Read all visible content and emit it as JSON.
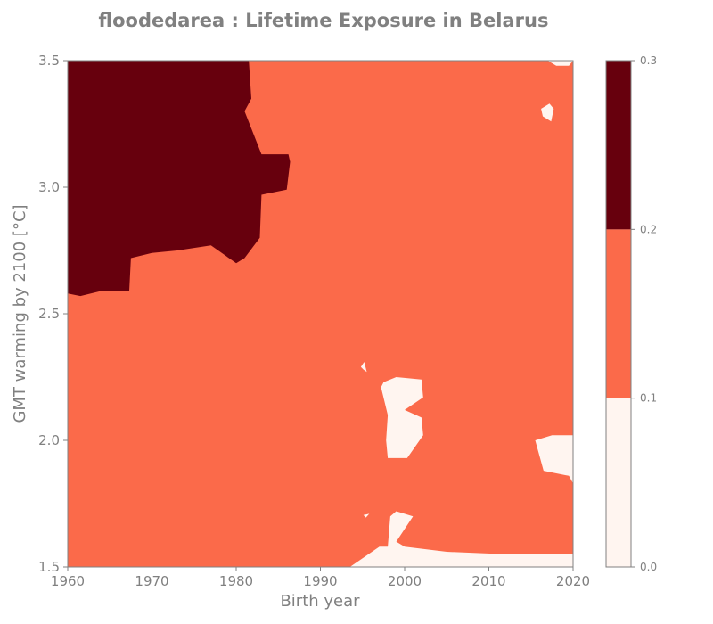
{
  "chart_data": {
    "type": "heatmap",
    "title": "floodedarea : Lifetime Exposure in Belarus",
    "xlabel": "Birth year",
    "ylabel": "GMT warming by 2100 [°C]",
    "xlim": [
      1960,
      2020
    ],
    "ylim": [
      1.5,
      3.5
    ],
    "x_ticks": [
      "1960",
      "1970",
      "1980",
      "1990",
      "2000",
      "2010",
      "2020"
    ],
    "y_ticks": [
      "1.5",
      "2.0",
      "2.5",
      "3.0",
      "3.5"
    ],
    "background_level_color": "#fb6a4a",
    "levels": [
      {
        "range": [
          0.0,
          0.1
        ],
        "color": "#fff5f0"
      },
      {
        "range": [
          0.1,
          0.2
        ],
        "color": "#fb6a4a"
      },
      {
        "range": [
          0.2,
          0.3
        ],
        "color": "#67000d"
      }
    ],
    "regions": [
      {
        "level": "0.2-0.3",
        "polygon": [
          [
            1960,
            3.5
          ],
          [
            1981.5,
            3.5
          ],
          [
            1981.8,
            3.35
          ],
          [
            1981,
            3.3
          ],
          [
            1983,
            3.13
          ],
          [
            1986.2,
            3.13
          ],
          [
            1986.4,
            3.1
          ],
          [
            1986,
            2.99
          ],
          [
            1983,
            2.97
          ],
          [
            1982.8,
            2.8
          ],
          [
            1981,
            2.72
          ],
          [
            1980,
            2.7
          ],
          [
            1977,
            2.77
          ],
          [
            1973,
            2.75
          ],
          [
            1970,
            2.74
          ],
          [
            1967.5,
            2.72
          ],
          [
            1967.3,
            2.59
          ],
          [
            1964,
            2.59
          ],
          [
            1961.5,
            2.57
          ],
          [
            1960,
            2.58
          ]
        ]
      },
      {
        "level": "0.0-0.1",
        "polygon": [
          [
            1997.2,
            2.21
          ],
          [
            1997.5,
            2.23
          ],
          [
            1999,
            2.25
          ],
          [
            2002,
            2.24
          ],
          [
            2002.2,
            2.17
          ],
          [
            2000,
            2.12
          ],
          [
            2002,
            2.09
          ],
          [
            2002.2,
            2.02
          ],
          [
            2000.3,
            1.93
          ],
          [
            1998,
            1.93
          ],
          [
            1997.8,
            2.0
          ],
          [
            1998,
            2.1
          ]
        ]
      },
      {
        "level": "0.0-0.1",
        "polygon": [
          [
            1993.5,
            1.5
          ],
          [
            1997,
            1.58
          ],
          [
            1998,
            1.58
          ],
          [
            1998.3,
            1.7
          ],
          [
            1999,
            1.72
          ],
          [
            2001,
            1.7
          ],
          [
            1999,
            1.6
          ],
          [
            2000,
            1.58
          ],
          [
            2005,
            1.56
          ],
          [
            2012,
            1.55
          ],
          [
            2020,
            1.55
          ],
          [
            2020,
            1.5
          ]
        ]
      },
      {
        "level": "0.0-0.1",
        "polygon": [
          [
            2015.5,
            2.0
          ],
          [
            2017.5,
            2.02
          ],
          [
            2020,
            2.02
          ],
          [
            2020,
            1.83
          ],
          [
            2019.5,
            1.86
          ],
          [
            2016.5,
            1.88
          ],
          [
            2016,
            1.94
          ]
        ]
      },
      {
        "level": "0.0-0.1",
        "polygon": [
          [
            2017,
            3.5
          ],
          [
            2020,
            3.5
          ],
          [
            2019.5,
            3.48
          ],
          [
            2018,
            3.48
          ]
        ]
      },
      {
        "level": "0.0-0.1",
        "polygon": [
          [
            2016.2,
            3.31
          ],
          [
            2017.2,
            3.33
          ],
          [
            2017.7,
            3.31
          ],
          [
            2017.4,
            3.26
          ],
          [
            2016.4,
            3.28
          ]
        ]
      },
      {
        "level": "0.0-0.1",
        "polygon": [
          [
            1994.8,
            2.29
          ],
          [
            1995.2,
            2.31
          ],
          [
            1995.5,
            2.27
          ],
          [
            1995.1,
            2.28
          ]
        ]
      },
      {
        "level": "0.0-0.1",
        "polygon": [
          [
            1995.1,
            1.705
          ],
          [
            1995.8,
            1.71
          ],
          [
            1995.4,
            1.695
          ]
        ]
      }
    ],
    "colorbar": {
      "ticks": [
        "0.0",
        "0.1",
        "0.2",
        "0.3"
      ],
      "values": [
        0.0,
        0.1,
        0.2,
        0.3
      ],
      "colors": [
        "#fff5f0",
        "#fb6a4a",
        "#67000d"
      ]
    }
  }
}
